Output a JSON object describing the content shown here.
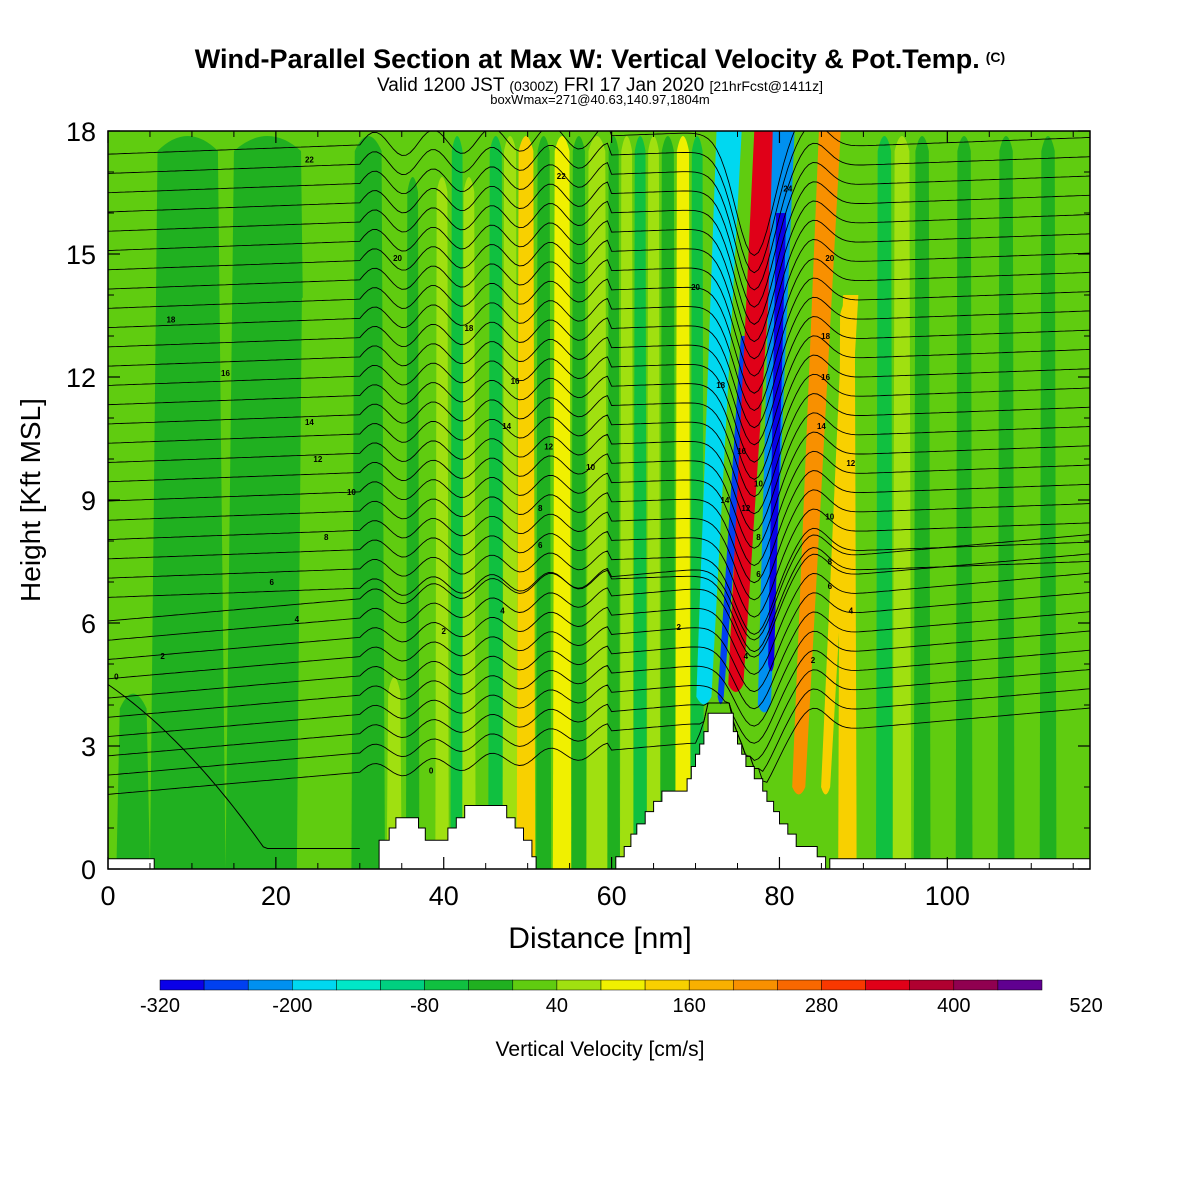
{
  "title": {
    "main": "Wind-Parallel Section at Max W: Vertical Velocity & Pot.Temp.",
    "copyright": "(C)",
    "valid_prefix": "Valid 1200 JST",
    "valid_utc": "(0300Z)",
    "valid_date": "FRI 17 Jan 2020",
    "forecast": "[21hrFcst@1411z]",
    "box_info": "boxWmax=271@40.63,140.97,1804m"
  },
  "chart_data": {
    "type": "heatmap",
    "xlabel": "Distance [nm]",
    "ylabel": "Height [Kft MSL]",
    "xlim": [
      0,
      117
    ],
    "ylim": [
      0,
      18
    ],
    "x_ticks": [
      "0",
      "20",
      "40",
      "60",
      "80",
      "100"
    ],
    "y_ticks": [
      "0",
      "3",
      "6",
      "9",
      "12",
      "15",
      "18"
    ],
    "colorbar": {
      "label": "Vertical Velocity [cm/s]",
      "tick_labels": [
        "-320",
        "-200",
        "-80",
        "40",
        "160",
        "280",
        "400",
        "520"
      ],
      "levels": [
        -320,
        -280,
        -240,
        -200,
        -160,
        -120,
        -80,
        -40,
        0,
        40,
        80,
        120,
        160,
        200,
        240,
        280,
        320,
        360,
        400,
        440,
        480,
        520
      ],
      "colors": [
        "#0a00e8",
        "#0040f0",
        "#0090f0",
        "#00d8f0",
        "#00e8c8",
        "#00d080",
        "#10c040",
        "#20b020",
        "#60cc10",
        "#a0e010",
        "#f0f000",
        "#f8d000",
        "#f8b000",
        "#f89000",
        "#f86800",
        "#f83800",
        "#e00018",
        "#b00030",
        "#900050",
        "#600090"
      ]
    },
    "terrain_kft": [
      [
        0,
        0.25
      ],
      [
        5.5,
        0.25
      ],
      [
        5.5,
        0
      ],
      [
        32.3,
        0
      ],
      [
        32.3,
        0.7
      ],
      [
        33.5,
        0.7
      ],
      [
        33.5,
        1.0
      ],
      [
        34.3,
        1.0
      ],
      [
        34.3,
        1.25
      ],
      [
        37,
        1.25
      ],
      [
        37,
        1.0
      ],
      [
        37.8,
        1.0
      ],
      [
        37.8,
        0.7
      ],
      [
        40.5,
        0.7
      ],
      [
        40.5,
        1.0
      ],
      [
        41.5,
        1.0
      ],
      [
        41.5,
        1.25
      ],
      [
        42.5,
        1.25
      ],
      [
        42.5,
        1.55
      ],
      [
        47.5,
        1.55
      ],
      [
        47.5,
        1.25
      ],
      [
        48.5,
        1.25
      ],
      [
        48.5,
        1.0
      ],
      [
        49.5,
        1.0
      ],
      [
        49.5,
        0.7
      ],
      [
        50.5,
        0.7
      ],
      [
        50.5,
        0.3
      ],
      [
        51,
        0.3
      ],
      [
        51,
        0
      ],
      [
        60.5,
        0
      ],
      [
        60.5,
        0.3
      ],
      [
        61.5,
        0.3
      ],
      [
        61.5,
        0.55
      ],
      [
        62.3,
        0.55
      ],
      [
        62.3,
        0.85
      ],
      [
        63,
        0.85
      ],
      [
        63,
        1.1
      ],
      [
        64,
        1.1
      ],
      [
        64,
        1.4
      ],
      [
        65,
        1.4
      ],
      [
        65,
        1.65
      ],
      [
        66,
        1.65
      ],
      [
        66,
        1.9
      ],
      [
        69,
        1.9
      ],
      [
        69,
        2.2
      ],
      [
        69.5,
        2.2
      ],
      [
        69.5,
        2.5
      ],
      [
        70,
        2.5
      ],
      [
        70,
        2.8
      ],
      [
        70.5,
        2.8
      ],
      [
        70.5,
        3.05
      ],
      [
        71,
        3.05
      ],
      [
        71,
        3.35
      ],
      [
        71.5,
        3.35
      ],
      [
        71.5,
        3.8
      ],
      [
        74.5,
        3.8
      ],
      [
        74.5,
        3.35
      ],
      [
        75,
        3.35
      ],
      [
        75,
        3.05
      ],
      [
        75.5,
        3.05
      ],
      [
        75.5,
        2.8
      ],
      [
        76,
        2.8
      ],
      [
        76,
        2.5
      ],
      [
        77,
        2.5
      ],
      [
        77,
        2.2
      ],
      [
        78,
        2.2
      ],
      [
        78,
        1.9
      ],
      [
        78.5,
        1.9
      ],
      [
        78.5,
        1.65
      ],
      [
        79.3,
        1.65
      ],
      [
        79.3,
        1.4
      ],
      [
        80,
        1.4
      ],
      [
        80,
        1.1
      ],
      [
        81,
        1.1
      ],
      [
        81,
        0.85
      ],
      [
        82,
        0.85
      ],
      [
        82,
        0.55
      ],
      [
        84.5,
        0.55
      ],
      [
        84.5,
        0.3
      ],
      [
        85.5,
        0.3
      ],
      [
        85.5,
        0
      ],
      [
        86,
        0
      ],
      [
        86,
        0.25
      ],
      [
        117,
        0.25
      ]
    ],
    "vertical_velocity_bands": [
      {
        "x": 0,
        "w": 9,
        "value": 20,
        "top_kft": 18
      },
      {
        "x": 1,
        "w": 4,
        "value": -20,
        "top_kft": 4.4
      },
      {
        "x": 5,
        "w": 9,
        "value": -40,
        "top_kft": 18
      },
      {
        "x": 14,
        "w": 10,
        "value": -20,
        "top_kft": 18
      },
      {
        "x": 22.5,
        "w": 6,
        "value": 10,
        "top_kft": 14.4
      },
      {
        "x": 24.5,
        "w": 4,
        "value": 20,
        "top_kft": 12.2
      },
      {
        "x": 29,
        "w": 4,
        "value": -20,
        "top_kft": 18
      },
      {
        "x": 33.2,
        "w": 1.8,
        "value": 60,
        "top_kft": 4.8
      },
      {
        "x": 35.5,
        "w": 1.6,
        "value": -40,
        "top_kft": 17
      },
      {
        "x": 37.5,
        "w": 1.6,
        "value": 20,
        "top_kft": 17
      },
      {
        "x": 39,
        "w": 1.6,
        "value": 60,
        "top_kft": 17
      },
      {
        "x": 40.8,
        "w": 1.6,
        "value": -60,
        "top_kft": 18
      },
      {
        "x": 42.2,
        "w": 1.6,
        "value": 60,
        "top_kft": 17
      },
      {
        "x": 43.8,
        "w": 1.6,
        "value": 20,
        "top_kft": 14
      },
      {
        "x": 45.3,
        "w": 1.8,
        "value": -60,
        "top_kft": 18
      },
      {
        "x": 47,
        "w": 1.8,
        "value": 60,
        "top_kft": 18
      },
      {
        "x": 48.7,
        "w": 2.2,
        "value": 140,
        "top_kft": 18
      },
      {
        "x": 51,
        "w": 1.8,
        "value": -40,
        "top_kft": 18
      },
      {
        "x": 53,
        "w": 2.2,
        "value": 100,
        "top_kft": 18
      },
      {
        "x": 55.2,
        "w": 1.8,
        "value": -20,
        "top_kft": 18
      },
      {
        "x": 57,
        "w": 2.5,
        "value": 40,
        "top_kft": 18
      },
      {
        "x": 59.5,
        "w": 1.5,
        "value": -20,
        "top_kft": 18
      },
      {
        "x": 61,
        "w": 1.6,
        "value": 60,
        "top_kft": 18
      },
      {
        "x": 62.6,
        "w": 1.6,
        "value": -80,
        "top_kft": 18
      },
      {
        "x": 64.2,
        "w": 1.6,
        "value": 60,
        "top_kft": 18
      },
      {
        "x": 65.8,
        "w": 1.8,
        "value": -40,
        "top_kft": 18
      },
      {
        "x": 67.6,
        "w": 1.8,
        "value": 100,
        "top_kft": 18
      },
      {
        "x": 69.4,
        "w": 1.6,
        "value": -60,
        "top_kft": 18
      },
      {
        "x": 87,
        "w": 2.2,
        "value": 140,
        "top_kft": 14
      },
      {
        "x": 89.2,
        "w": 2,
        "value": 20,
        "top_kft": 18
      },
      {
        "x": 91.5,
        "w": 2,
        "value": -60,
        "top_kft": 18
      },
      {
        "x": 93.5,
        "w": 2.2,
        "value": 40,
        "top_kft": 18
      },
      {
        "x": 96,
        "w": 2,
        "value": -40,
        "top_kft": 18
      },
      {
        "x": 98.5,
        "w": 2.2,
        "value": 20,
        "top_kft": 18
      },
      {
        "x": 101,
        "w": 2,
        "value": -40,
        "top_kft": 18
      },
      {
        "x": 103.5,
        "w": 2.5,
        "value": 20,
        "top_kft": 18
      },
      {
        "x": 106,
        "w": 2,
        "value": -40,
        "top_kft": 18
      },
      {
        "x": 108.5,
        "w": 2.5,
        "value": 20,
        "top_kft": 18
      },
      {
        "x": 111,
        "w": 2,
        "value": -40,
        "top_kft": 18
      },
      {
        "x": 113.5,
        "w": 2.5,
        "value": 20,
        "top_kft": 18
      }
    ],
    "mountain_wave_bands": [
      {
        "value": -200,
        "bottom": [
          71,
          4.2
        ],
        "top": [
          74,
          18
        ],
        "width_nm": 3
      },
      {
        "value": -280,
        "bottom": [
          73,
          4.2
        ],
        "top": [
          76,
          13
        ],
        "width_nm": 1.2
      },
      {
        "value": 440,
        "bottom": [
          75.2,
          5
        ],
        "top": [
          78,
          18
        ],
        "width_nm": 1.6
      },
      {
        "value": 320,
        "bottom": [
          74.8,
          4.5
        ],
        "top": [
          78.5,
          18
        ],
        "width_nm": 3
      },
      {
        "value": -240,
        "bottom": [
          78.2,
          4
        ],
        "top": [
          80.5,
          18
        ],
        "width_nm": 2.6
      },
      {
        "value": -320,
        "bottom": [
          79,
          5
        ],
        "top": [
          80.2,
          16
        ],
        "width_nm": 1.2
      },
      {
        "value": 220,
        "bottom": [
          82.3,
          2
        ],
        "top": [
          86,
          18
        ],
        "width_nm": 2.6
      },
      {
        "value": 140,
        "bottom": [
          85.5,
          2
        ],
        "top": [
          88.5,
          14
        ],
        "width_nm": 1.8
      }
    ],
    "theta_contour_labels": [
      {
        "text": "0",
        "x": 1,
        "y": 4.7
      },
      {
        "text": "2",
        "x": 6.5,
        "y": 5.2
      },
      {
        "text": "4",
        "x": 22.5,
        "y": 6.1
      },
      {
        "text": "6",
        "x": 19.5,
        "y": 7
      },
      {
        "text": "8",
        "x": 26,
        "y": 8.1
      },
      {
        "text": "10",
        "x": 29,
        "y": 9.2
      },
      {
        "text": "12",
        "x": 25,
        "y": 10
      },
      {
        "text": "14",
        "x": 24,
        "y": 10.9
      },
      {
        "text": "16",
        "x": 14,
        "y": 12.1
      },
      {
        "text": "18",
        "x": 7.5,
        "y": 13.4
      },
      {
        "text": "20",
        "x": 34.5,
        "y": 14.9
      },
      {
        "text": "22",
        "x": 24,
        "y": 17.3
      },
      {
        "text": "0",
        "x": 38.5,
        "y": 2.4
      },
      {
        "text": "2",
        "x": 40,
        "y": 5.8
      },
      {
        "text": "4",
        "x": 47,
        "y": 6.3
      },
      {
        "text": "6",
        "x": 51.5,
        "y": 7.9
      },
      {
        "text": "8",
        "x": 51.5,
        "y": 8.8
      },
      {
        "text": "10",
        "x": 57.5,
        "y": 9.8
      },
      {
        "text": "12",
        "x": 52.5,
        "y": 10.3
      },
      {
        "text": "14",
        "x": 47.5,
        "y": 10.8
      },
      {
        "text": "16",
        "x": 48.5,
        "y": 11.9
      },
      {
        "text": "18",
        "x": 43,
        "y": 13.2
      },
      {
        "text": "22",
        "x": 54,
        "y": 16.9
      },
      {
        "text": "2",
        "x": 68,
        "y": 5.9
      },
      {
        "text": "20",
        "x": 70,
        "y": 14.2
      },
      {
        "text": "18",
        "x": 73,
        "y": 11.8
      },
      {
        "text": "16",
        "x": 75.5,
        "y": 10.2
      },
      {
        "text": "14",
        "x": 73.5,
        "y": 9
      },
      {
        "text": "12",
        "x": 76,
        "y": 8.8
      },
      {
        "text": "10",
        "x": 77.5,
        "y": 9.4
      },
      {
        "text": "8",
        "x": 77.5,
        "y": 8.1
      },
      {
        "text": "6",
        "x": 77.5,
        "y": 7.2
      },
      {
        "text": "4",
        "x": 76,
        "y": 5.2
      },
      {
        "text": "24",
        "x": 81,
        "y": 16.6
      },
      {
        "text": "20",
        "x": 86,
        "y": 14.9
      },
      {
        "text": "18",
        "x": 85.5,
        "y": 13
      },
      {
        "text": "16",
        "x": 85.5,
        "y": 12
      },
      {
        "text": "14",
        "x": 85,
        "y": 10.8
      },
      {
        "text": "12",
        "x": 88.5,
        "y": 9.9
      },
      {
        "text": "10",
        "x": 86,
        "y": 8.6
      },
      {
        "text": "8",
        "x": 86,
        "y": 7.5
      },
      {
        "text": "6",
        "x": 86,
        "y": 6.9
      },
      {
        "text": "4",
        "x": 88.5,
        "y": 6.3
      },
      {
        "text": "2",
        "x": 84,
        "y": 5.1
      }
    ]
  }
}
